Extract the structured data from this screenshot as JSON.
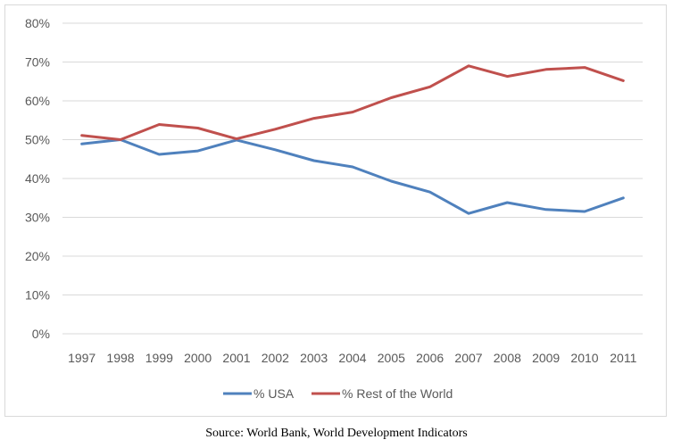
{
  "chart_data": {
    "type": "line",
    "title": "",
    "xlabel": "",
    "ylabel": "",
    "categories": [
      "1997",
      "1998",
      "1999",
      "2000",
      "2001",
      "2002",
      "2003",
      "2004",
      "2005",
      "2006",
      "2007",
      "2008",
      "2009",
      "2010",
      "2011"
    ],
    "ylim": [
      0,
      80
    ],
    "yticks": [
      0,
      10,
      20,
      30,
      40,
      50,
      60,
      70,
      80
    ],
    "ytick_labels": [
      "0%",
      "10%",
      "20%",
      "30%",
      "40%",
      "50%",
      "60%",
      "70%",
      "80%"
    ],
    "grid": true,
    "legend_position": "bottom",
    "series": [
      {
        "name": "% USA",
        "color": "#4f81bd",
        "values": [
          48.9,
          50.0,
          46.2,
          47.1,
          49.9,
          47.4,
          44.6,
          43.0,
          39.3,
          36.5,
          31.0,
          33.8,
          32.0,
          31.5,
          35.0
        ]
      },
      {
        "name": "% Rest of the World",
        "color": "#c0504d",
        "values": [
          51.1,
          50.0,
          53.9,
          53.0,
          50.2,
          52.7,
          55.5,
          57.1,
          60.8,
          63.6,
          69.0,
          66.3,
          68.1,
          68.6,
          65.2
        ]
      }
    ]
  },
  "source_note": "Source: World Bank, World Development Indicators"
}
